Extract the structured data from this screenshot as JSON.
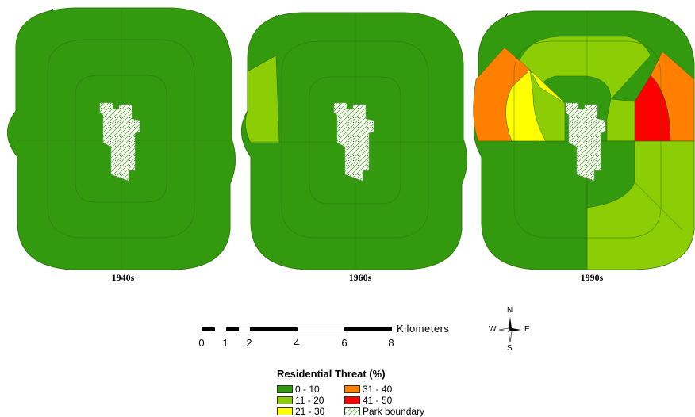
{
  "panels": [
    {
      "label": "(a)",
      "period": "1940s"
    },
    {
      "label": "(b)",
      "period": "1960s"
    },
    {
      "label": "(c)",
      "period": "1990s"
    }
  ],
  "scale": {
    "unit_label": "Kilometers",
    "ticks": [
      "0",
      "1",
      "2",
      "4",
      "6",
      "8"
    ]
  },
  "compass": {
    "n": "N",
    "s": "S",
    "e": "E",
    "w": "W"
  },
  "legend": {
    "title": "Residential Threat (%)",
    "items": [
      {
        "label": "0 - 10",
        "color": "#339a0f"
      },
      {
        "label": "11 - 20",
        "color": "#8ccd05"
      },
      {
        "label": "21 - 30",
        "color": "#ffff00"
      },
      {
        "label": "31 - 40",
        "color": "#ff8000"
      },
      {
        "label": "41 - 50",
        "color": "#ff0000"
      },
      {
        "label": "Park boundary",
        "color": "#e8f2e0"
      }
    ]
  }
}
